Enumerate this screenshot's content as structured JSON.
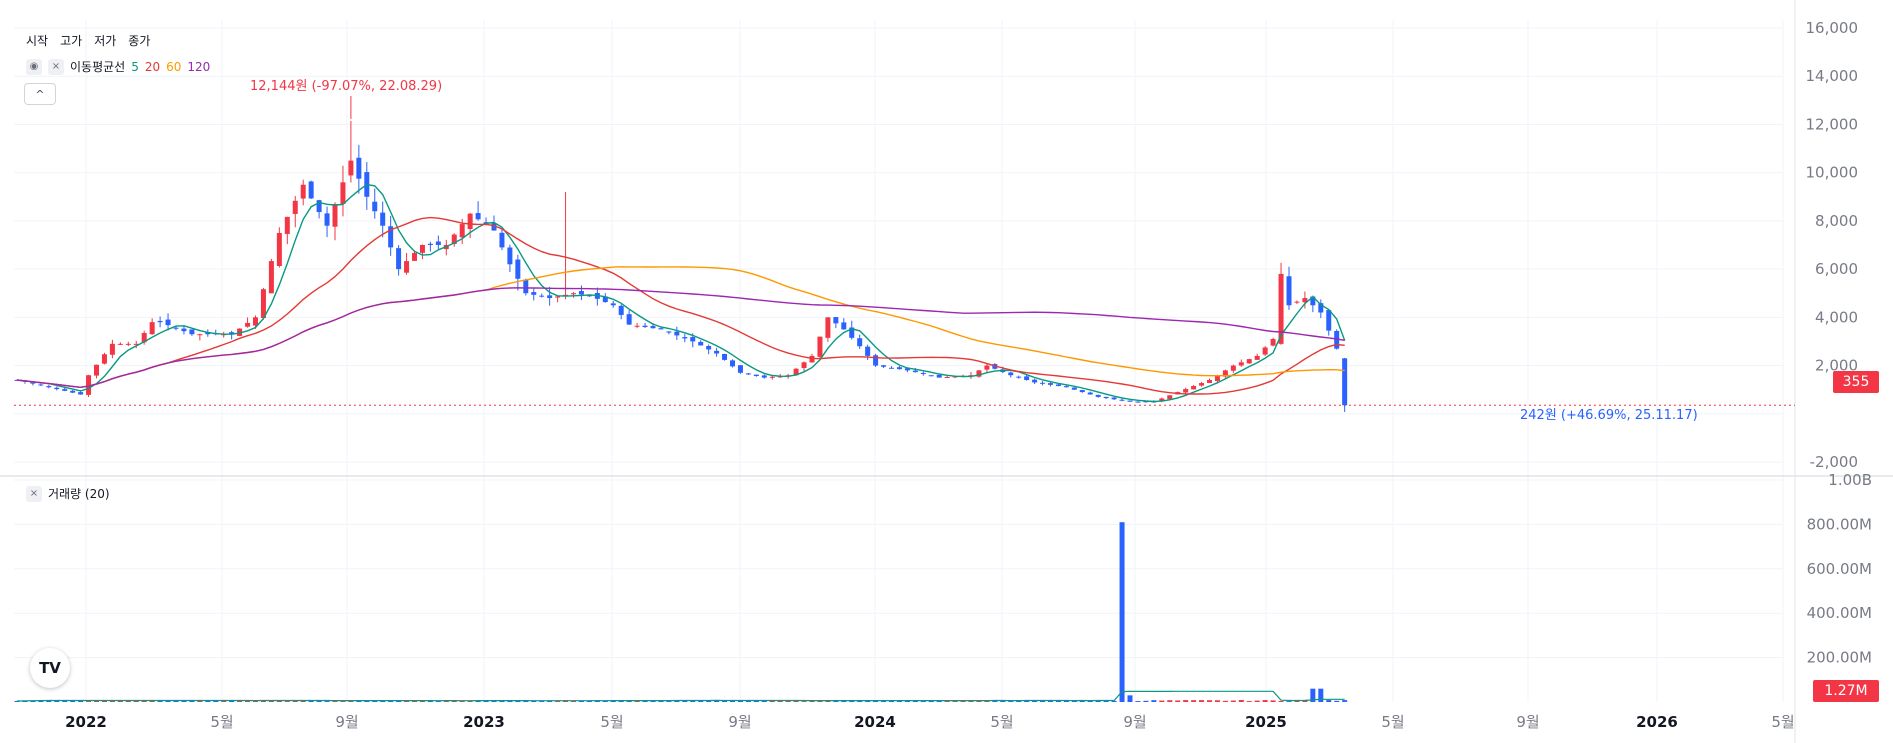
{
  "chart_data": {
    "type": "candlestick",
    "x_tick_labels": [
      "2022",
      "5월",
      "9월",
      "2023",
      "5월",
      "9월",
      "2024",
      "5월",
      "9월",
      "2025",
      "5월",
      "9월",
      "2026",
      "5월"
    ],
    "y_tick_labels": [
      "16,000",
      "14,000",
      "12,000",
      "10,000",
      "8,000",
      "6,000",
      "4,000",
      "2,000",
      "-2,000"
    ],
    "ylim": [
      -2000,
      16000
    ],
    "volume_tick_labels": [
      "1.00B",
      "800.00M",
      "600.00M",
      "400.00M",
      "200.00M"
    ],
    "volume_ylim": [
      0,
      1000
    ],
    "current_price_label": "355",
    "current_price": 355,
    "current_volume_label": "1.27M",
    "high_annotation": "12,144원 (-97.07%, 22.08.29)",
    "low_annotation": "242원 (+46.69%, 25.11.17)",
    "ohlc_labels": [
      "시작",
      "고가",
      "저가",
      "종가"
    ],
    "ma_legend_title": "이동평균선",
    "volume_legend": "거래량 (20)",
    "colors": {
      "up": "#f23645",
      "down": "#2962ff",
      "ma5": "#089981",
      "ma20": "#e53935",
      "ma60": "#ff9800",
      "ma120": "#9c27b0",
      "grid": "#f0f3fa"
    },
    "close_anchors": [
      [
        0,
        1400
      ],
      [
        4,
        1100
      ],
      [
        8,
        800
      ],
      [
        9,
        1600
      ],
      [
        12,
        2900
      ],
      [
        15,
        2900
      ],
      [
        17,
        3800
      ],
      [
        18,
        3800
      ],
      [
        22,
        3300
      ],
      [
        27,
        3300
      ],
      [
        30,
        4000
      ],
      [
        33,
        7500
      ],
      [
        36,
        9500
      ],
      [
        39,
        7800
      ],
      [
        42,
        10500
      ],
      [
        44,
        9000
      ],
      [
        46,
        7800
      ],
      [
        48,
        6000
      ],
      [
        51,
        7000
      ],
      [
        54,
        7000
      ],
      [
        57,
        8300
      ],
      [
        60,
        7600
      ],
      [
        62,
        6200
      ],
      [
        64,
        5000
      ],
      [
        67,
        4800
      ],
      [
        70,
        5000
      ],
      [
        72,
        4900
      ],
      [
        75,
        4500
      ],
      [
        77,
        3700
      ],
      [
        81,
        3500
      ],
      [
        85,
        3000
      ],
      [
        88,
        2500
      ],
      [
        91,
        1700
      ],
      [
        94,
        1500
      ],
      [
        97,
        1600
      ],
      [
        100,
        2400
      ],
      [
        102,
        4000
      ],
      [
        104,
        3500
      ],
      [
        106,
        2800
      ],
      [
        108,
        2000
      ],
      [
        112,
        1800
      ],
      [
        116,
        1500
      ],
      [
        120,
        1600
      ],
      [
        122,
        2000
      ],
      [
        125,
        1600
      ],
      [
        128,
        1300
      ],
      [
        132,
        1100
      ],
      [
        136,
        700
      ],
      [
        140,
        500
      ],
      [
        143,
        500
      ],
      [
        146,
        900
      ],
      [
        150,
        1400
      ],
      [
        153,
        2000
      ],
      [
        156,
        2400
      ],
      [
        158,
        3100
      ],
      [
        159,
        5800
      ],
      [
        160,
        4500
      ],
      [
        162,
        4800
      ],
      [
        164,
        4200
      ],
      [
        166,
        2700
      ],
      [
        167,
        355
      ]
    ],
    "volume_spike": {
      "bar_index": 139,
      "value": 810
    },
    "volume_tail": [
      {
        "bar_index": 163,
        "value": 60
      },
      {
        "bar_index": 164,
        "value": 60
      }
    ],
    "series": [
      {
        "name": "5",
        "color": "#089981"
      },
      {
        "name": "20",
        "color": "#e53935"
      },
      {
        "name": "60",
        "color": "#ff9800"
      },
      {
        "name": "120",
        "color": "#9c27b0"
      }
    ]
  },
  "ui": {
    "collapse_symbol": "^",
    "eye_symbol": "◉",
    "close_symbol": "×",
    "logo_text": "TV"
  }
}
